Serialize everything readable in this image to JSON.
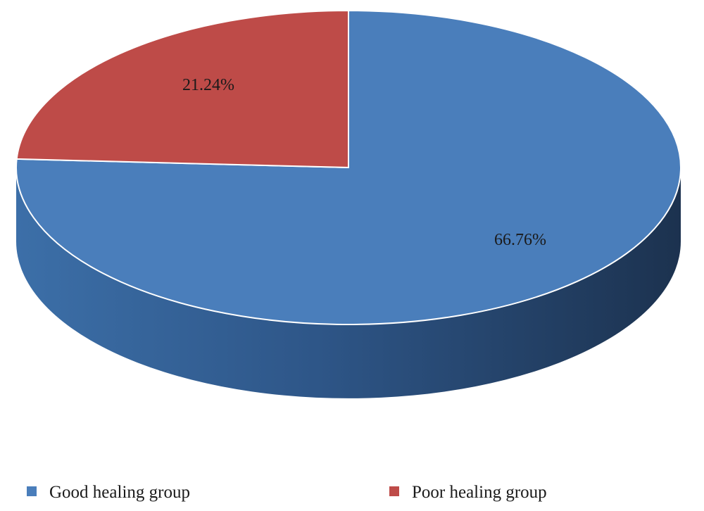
{
  "chart_data": {
    "type": "pie",
    "style": "3d",
    "title": "",
    "series": [
      {
        "name": "Good healing group",
        "value": 66.76,
        "label": "66.76%",
        "color": "#4a7ebb",
        "side_color": "#2f5a8c"
      },
      {
        "name": "Poor healing group",
        "value": 21.24,
        "label": "21.24%",
        "color": "#be4b48",
        "side_color": "#8c3330"
      }
    ],
    "legend": {
      "position": "bottom",
      "items": [
        "Good healing group",
        "Poor healing group"
      ]
    }
  }
}
